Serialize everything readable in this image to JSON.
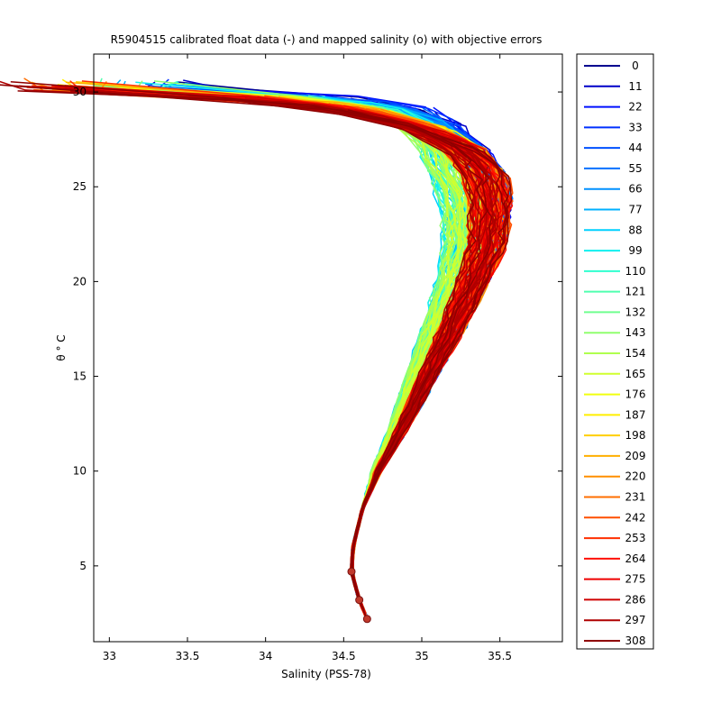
{
  "chart_data": {
    "type": "line",
    "title": "R5904515 calibrated float data (-) and mapped salinity (o) with objective errors",
    "xlabel": "Salinity (PSS-78)",
    "ylabel": "θ ° C",
    "xlim": [
      32.9,
      35.9
    ],
    "ylim": [
      1,
      32
    ],
    "xticks": [
      "33",
      "33.5",
      "34",
      "34.5",
      "35",
      "35.5"
    ],
    "xtick_values": [
      33,
      33.5,
      34,
      34.5,
      35,
      35.5
    ],
    "yticks": [
      "5",
      "10",
      "15",
      "20",
      "25",
      "30"
    ],
    "ytick_values": [
      5,
      10,
      15,
      20,
      25,
      30
    ],
    "grid": false,
    "legend_position": "right",
    "legend": {
      "labels": [
        "0",
        "11",
        "22",
        "33",
        "44",
        "55",
        "66",
        "77",
        "88",
        "99",
        "110",
        "121",
        "132",
        "143",
        "154",
        "165",
        "176",
        "187",
        "198",
        "209",
        "220",
        "231",
        "242",
        "253",
        "264",
        "275",
        "286",
        "297",
        "308"
      ],
      "colors": [
        "#00008f",
        "#0000c8",
        "#0010ff",
        "#0030ff",
        "#0050ff",
        "#0070ff",
        "#0090ff",
        "#00b0ff",
        "#00d0ff",
        "#10f0ef",
        "#30ffcf",
        "#50ffaf",
        "#70ff8f",
        "#90ff6f",
        "#b0ff4f",
        "#d0ff2f",
        "#f0ff0f",
        "#ffef00",
        "#ffcf00",
        "#ffaf00",
        "#ff8f00",
        "#ff6f00",
        "#ff4f00",
        "#ff2f00",
        "#ff0f00",
        "#ef0000",
        "#cf0000",
        "#af0000",
        "#8f0000"
      ]
    },
    "profile_shape": {
      "description_points": [
        {
          "theta": 2.2,
          "salinity": 34.65
        },
        {
          "theta": 3.2,
          "salinity": 34.6
        },
        {
          "theta": 4.7,
          "salinity": 34.55
        },
        {
          "theta": 6.0,
          "salinity": 34.56
        },
        {
          "theta": 8.0,
          "salinity": 34.62
        },
        {
          "theta": 10.0,
          "salinity": 34.72
        },
        {
          "theta": 12.0,
          "salinity": 34.86
        },
        {
          "theta": 14.0,
          "salinity": 34.98
        },
        {
          "theta": 16.0,
          "salinity": 35.1
        },
        {
          "theta": 18.0,
          "salinity": 35.22
        },
        {
          "theta": 20.0,
          "salinity": 35.33
        },
        {
          "theta": 22.0,
          "salinity": 35.42
        },
        {
          "theta": 24.0,
          "salinity": 35.44
        },
        {
          "theta": 25.5,
          "salinity": 35.4
        },
        {
          "theta": 27.0,
          "salinity": 35.28
        },
        {
          "theta": 28.2,
          "salinity": 35.05
        },
        {
          "theta": 29.2,
          "salinity": 34.65
        },
        {
          "theta": 29.8,
          "salinity": 34.05
        },
        {
          "theta": 30.0,
          "salinity": 33.0
        }
      ]
    },
    "mapped_points": [
      {
        "salinity": 34.55,
        "theta": 4.7
      },
      {
        "salinity": 34.6,
        "theta": 3.2
      },
      {
        "salinity": 34.65,
        "theta": 2.2
      }
    ]
  }
}
